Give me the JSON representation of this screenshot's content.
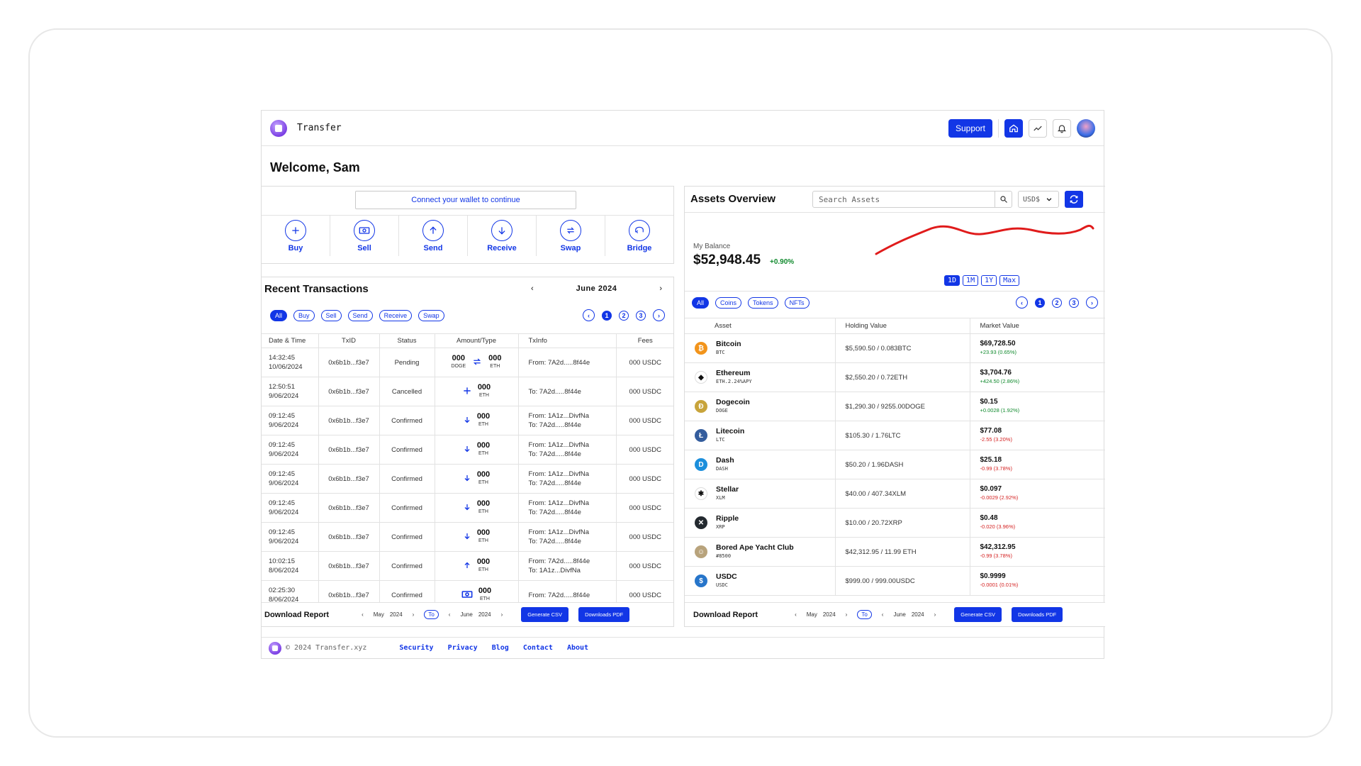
{
  "app": {
    "brand": "Transfer",
    "support_label": "Support"
  },
  "welcome": "Welcome, Sam",
  "wallet": {
    "connect_label": "Connect your wallet to continue",
    "actions": [
      {
        "label": "Buy",
        "icon": "plus-icon"
      },
      {
        "label": "Sell",
        "icon": "banknote-icon"
      },
      {
        "label": "Send",
        "icon": "arrow-up-icon"
      },
      {
        "label": "Receive",
        "icon": "arrow-down-icon"
      },
      {
        "label": "Swap",
        "icon": "swap-icon"
      },
      {
        "label": "Bridge",
        "icon": "bridge-icon"
      }
    ]
  },
  "transactions": {
    "title": "Recent Transactions",
    "month": "June  2024",
    "filters": [
      "All",
      "Buy",
      "Sell",
      "Send",
      "Receive",
      "Swap"
    ],
    "pages": [
      "1",
      "2",
      "3"
    ],
    "columns": [
      "Date & Time",
      "TxID",
      "Status",
      "Amount/Type",
      "TxInfo",
      "Fees"
    ],
    "rows": [
      {
        "time": "14:32:45",
        "date": "10/06/2024",
        "txid": "0x6b1b...f3e7",
        "status": "Pending",
        "from_amt": "000",
        "from_unit": "DOGE",
        "type": "swap",
        "to_amt": "000",
        "to_unit": "ETH",
        "info1": "From: 7A2d.....8f44e",
        "info2": "",
        "fees": "000 USDC"
      },
      {
        "time": "12:50:51",
        "date": "9/06/2024",
        "txid": "0x6b1b...f3e7",
        "status": "Cancelled",
        "from_amt": "",
        "from_unit": "",
        "type": "buy",
        "to_amt": "000",
        "to_unit": "ETH",
        "info1": "To: 7A2d.....8f44e",
        "info2": "",
        "fees": "000 USDC"
      },
      {
        "time": "09:12:45",
        "date": "9/06/2024",
        "txid": "0x6b1b...f3e7",
        "status": "Confirmed",
        "from_amt": "",
        "from_unit": "",
        "type": "receive",
        "to_amt": "000",
        "to_unit": "ETH",
        "info1": "From: 1A1z...DivfNa",
        "info2": "To: 7A2d.....8f44e",
        "fees": "000 USDC"
      },
      {
        "time": "09:12:45",
        "date": "9/06/2024",
        "txid": "0x6b1b...f3e7",
        "status": "Confirmed",
        "from_amt": "",
        "from_unit": "",
        "type": "receive",
        "to_amt": "000",
        "to_unit": "ETH",
        "info1": "From: 1A1z...DivfNa",
        "info2": "To: 7A2d.....8f44e",
        "fees": "000 USDC"
      },
      {
        "time": "09:12:45",
        "date": "9/06/2024",
        "txid": "0x6b1b...f3e7",
        "status": "Confirmed",
        "from_amt": "",
        "from_unit": "",
        "type": "receive",
        "to_amt": "000",
        "to_unit": "ETH",
        "info1": "From: 1A1z...DivfNa",
        "info2": "To: 7A2d.....8f44e",
        "fees": "000 USDC"
      },
      {
        "time": "09:12:45",
        "date": "9/06/2024",
        "txid": "0x6b1b...f3e7",
        "status": "Confirmed",
        "from_amt": "",
        "from_unit": "",
        "type": "receive",
        "to_amt": "000",
        "to_unit": "ETH",
        "info1": "From: 1A1z...DivfNa",
        "info2": "To: 7A2d.....8f44e",
        "fees": "000 USDC"
      },
      {
        "time": "09:12:45",
        "date": "9/06/2024",
        "txid": "0x6b1b...f3e7",
        "status": "Confirmed",
        "from_amt": "",
        "from_unit": "",
        "type": "receive",
        "to_amt": "000",
        "to_unit": "ETH",
        "info1": "From: 1A1z...DivfNa",
        "info2": "To: 7A2d.....8f44e",
        "fees": "000 USDC"
      },
      {
        "time": "10:02:15",
        "date": "8/06/2024",
        "txid": "0x6b1b...f3e7",
        "status": "Confirmed",
        "from_amt": "",
        "from_unit": "",
        "type": "send",
        "to_amt": "000",
        "to_unit": "ETH",
        "info1": "From: 7A2d.....8f44e",
        "info2": "To: 1A1z...DivfNa",
        "fees": "000 USDC"
      },
      {
        "time": "02:25:30",
        "date": "8/06/2024",
        "txid": "0x6b1b...f3e7",
        "status": "Confirmed",
        "from_amt": "",
        "from_unit": "",
        "type": "sell",
        "to_amt": "000",
        "to_unit": "ETH",
        "info1": "From: 7A2d.....8f44e",
        "info2": "",
        "fees": "000 USDC"
      }
    ],
    "report": {
      "title": "Download Report",
      "from_month": "May",
      "from_year": "2024",
      "to_label": "To",
      "to_month": "June",
      "to_year": "2024",
      "csv_label": "Generate CSV",
      "pdf_label": "Downloads PDF"
    }
  },
  "assets": {
    "title": "Assets Overview",
    "search_placeholder": "Search Assets",
    "currency": "USD$",
    "balance_label": "My Balance",
    "balance": "$52,948.45",
    "balance_change": "+0.90%",
    "ranges": [
      "1D",
      "1M",
      "1Y",
      "Max"
    ],
    "filters": [
      "All",
      "Coins",
      "Tokens",
      "NFTs"
    ],
    "pages": [
      "1",
      "2",
      "3"
    ],
    "columns": [
      "Asset",
      "Holding Value",
      "Market Value"
    ],
    "rows": [
      {
        "name": "Bitcoin",
        "ticker": "BTC",
        "color": "#f2941b",
        "glyph": "₿",
        "holding": "$5,590.50 / 0.083BTC",
        "market": "$69,728.50",
        "change": "+23.93 (0.65%)",
        "dir": "up"
      },
      {
        "name": "Ethereum",
        "ticker": "ETH.2.24%APY",
        "color": "#ffffff",
        "glyph": "◆",
        "holding": "$2,550.20 / 0.72ETH",
        "market": "$3,704.76",
        "change": "+424.50 (2.86%)",
        "dir": "up"
      },
      {
        "name": "Dogecoin",
        "ticker": "DOGE",
        "color": "#c8a43b",
        "glyph": "Ð",
        "holding": "$1,290.30 / 9255.00DOGE",
        "market": "$0.15",
        "change": "+0.0028 (1.92%)",
        "dir": "up"
      },
      {
        "name": "Litecoin",
        "ticker": "LTC",
        "color": "#345d9d",
        "glyph": "Ł",
        "holding": "$105.30 / 1.76LTC",
        "market": "$77.08",
        "change": "-2.55 (3.20%)",
        "dir": "down"
      },
      {
        "name": "Dash",
        "ticker": "DASH",
        "color": "#1c8fdc",
        "glyph": "D",
        "holding": "$50.20 / 1.96DASH",
        "market": "$25.18",
        "change": "-0.99 (3.78%)",
        "dir": "down"
      },
      {
        "name": "Stellar",
        "ticker": "XLM",
        "color": "#ffffff",
        "glyph": "✱",
        "holding": "$40.00 / 407.34XLM",
        "market": "$0.097",
        "change": "-0.0029 (2.92%)",
        "dir": "down"
      },
      {
        "name": "Ripple",
        "ticker": "XRP",
        "color": "#23292f",
        "glyph": "✕",
        "holding": "$10.00 / 20.72XRP",
        "market": "$0.48",
        "change": "-0.020 (3.96%)",
        "dir": "down"
      },
      {
        "name": "Bored Ape Yacht Club",
        "ticker": "#8500",
        "color": "#b8a37c",
        "glyph": "☺",
        "holding": "$42,312.95 / 11.99 ETH",
        "market": "$42,312.95",
        "change": "-0.99 (3.78%)",
        "dir": "down"
      },
      {
        "name": "USDC",
        "ticker": "USDC",
        "color": "#2775ca",
        "glyph": "$",
        "holding": "$999.00 / 999.00USDC",
        "market": "$0.9999",
        "change": "-0.0001 (0.01%)",
        "dir": "down"
      }
    ],
    "report": {
      "title": "Download  Report",
      "from_month": "May",
      "from_year": "2024",
      "to_label": "To",
      "to_month": "June",
      "to_year": "2024",
      "csv_label": "Generate CSV",
      "pdf_label": "Downloads PDF"
    }
  },
  "footer": {
    "copyright": "© 2024 Transfer.xyz",
    "links": [
      "Security",
      "Privacy",
      "Blog",
      "Contact",
      "About"
    ]
  },
  "colors": {
    "accent": "#1236e6",
    "positive": "#118a2e",
    "negative": "#d42020",
    "sparkline": "#e01b1b"
  }
}
